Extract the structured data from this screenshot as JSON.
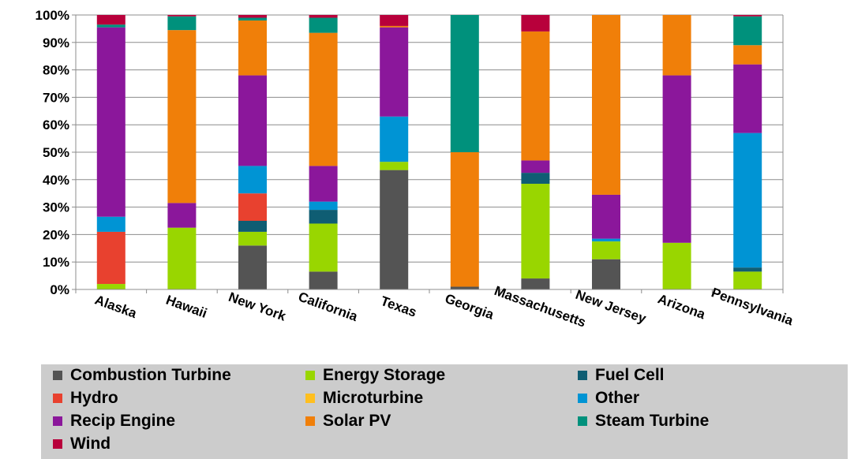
{
  "chart_data": {
    "type": "bar",
    "stacked": true,
    "percent": true,
    "categories": [
      "Alaska",
      "Hawaii",
      "New York",
      "California",
      "Texas",
      "Georgia",
      "Massachusetts",
      "New Jersey",
      "Arizona",
      "Pennsylvania"
    ],
    "yticks": [
      "0%",
      "10%",
      "20%",
      "30%",
      "40%",
      "50%",
      "60%",
      "70%",
      "80%",
      "90%",
      "100%"
    ],
    "ylim": [
      0,
      100
    ],
    "grid": true,
    "legend_position": "bottom",
    "series": [
      {
        "name": "Combustion Turbine",
        "color": "#545454",
        "values": [
          0,
          0,
          16,
          6.5,
          43.5,
          1,
          4,
          11,
          0,
          0
        ]
      },
      {
        "name": "Energy Storage",
        "color": "#99d600",
        "values": [
          2,
          22.5,
          5,
          17.5,
          3,
          0,
          34.5,
          6.5,
          17,
          6.5
        ]
      },
      {
        "name": "Fuel Cell",
        "color": "#0f5d73",
        "values": [
          0,
          0,
          4,
          5,
          0,
          0,
          4,
          0,
          0,
          1.5
        ]
      },
      {
        "name": "Hydro",
        "color": "#e8412f",
        "values": [
          19,
          0,
          10,
          0,
          0,
          0,
          0,
          0,
          0,
          0
        ]
      },
      {
        "name": "Microturbine",
        "color": "#ffbf1f",
        "values": [
          0,
          0,
          0,
          0,
          0,
          0,
          0,
          0,
          0,
          0
        ]
      },
      {
        "name": "Other",
        "color": "#0094d4",
        "values": [
          5.5,
          0,
          10,
          3,
          16.5,
          0,
          0,
          1,
          0,
          49
        ]
      },
      {
        "name": "Recip Engine",
        "color": "#8b179b",
        "values": [
          69,
          9,
          33,
          13,
          32.5,
          0,
          4.5,
          16,
          61,
          25
        ]
      },
      {
        "name": "Solar PV",
        "color": "#f07f09",
        "values": [
          0,
          63,
          20,
          48.5,
          0.5,
          49,
          47,
          65.5,
          22,
          7
        ]
      },
      {
        "name": "Steam Turbine",
        "color": "#00917c",
        "values": [
          1,
          5,
          1,
          5.5,
          0,
          50,
          0,
          0,
          0,
          10.5
        ]
      },
      {
        "name": "Wind",
        "color": "#b8003b",
        "values": [
          3.5,
          0.5,
          1,
          1,
          4,
          0,
          6,
          0,
          0,
          0.5
        ]
      }
    ]
  }
}
